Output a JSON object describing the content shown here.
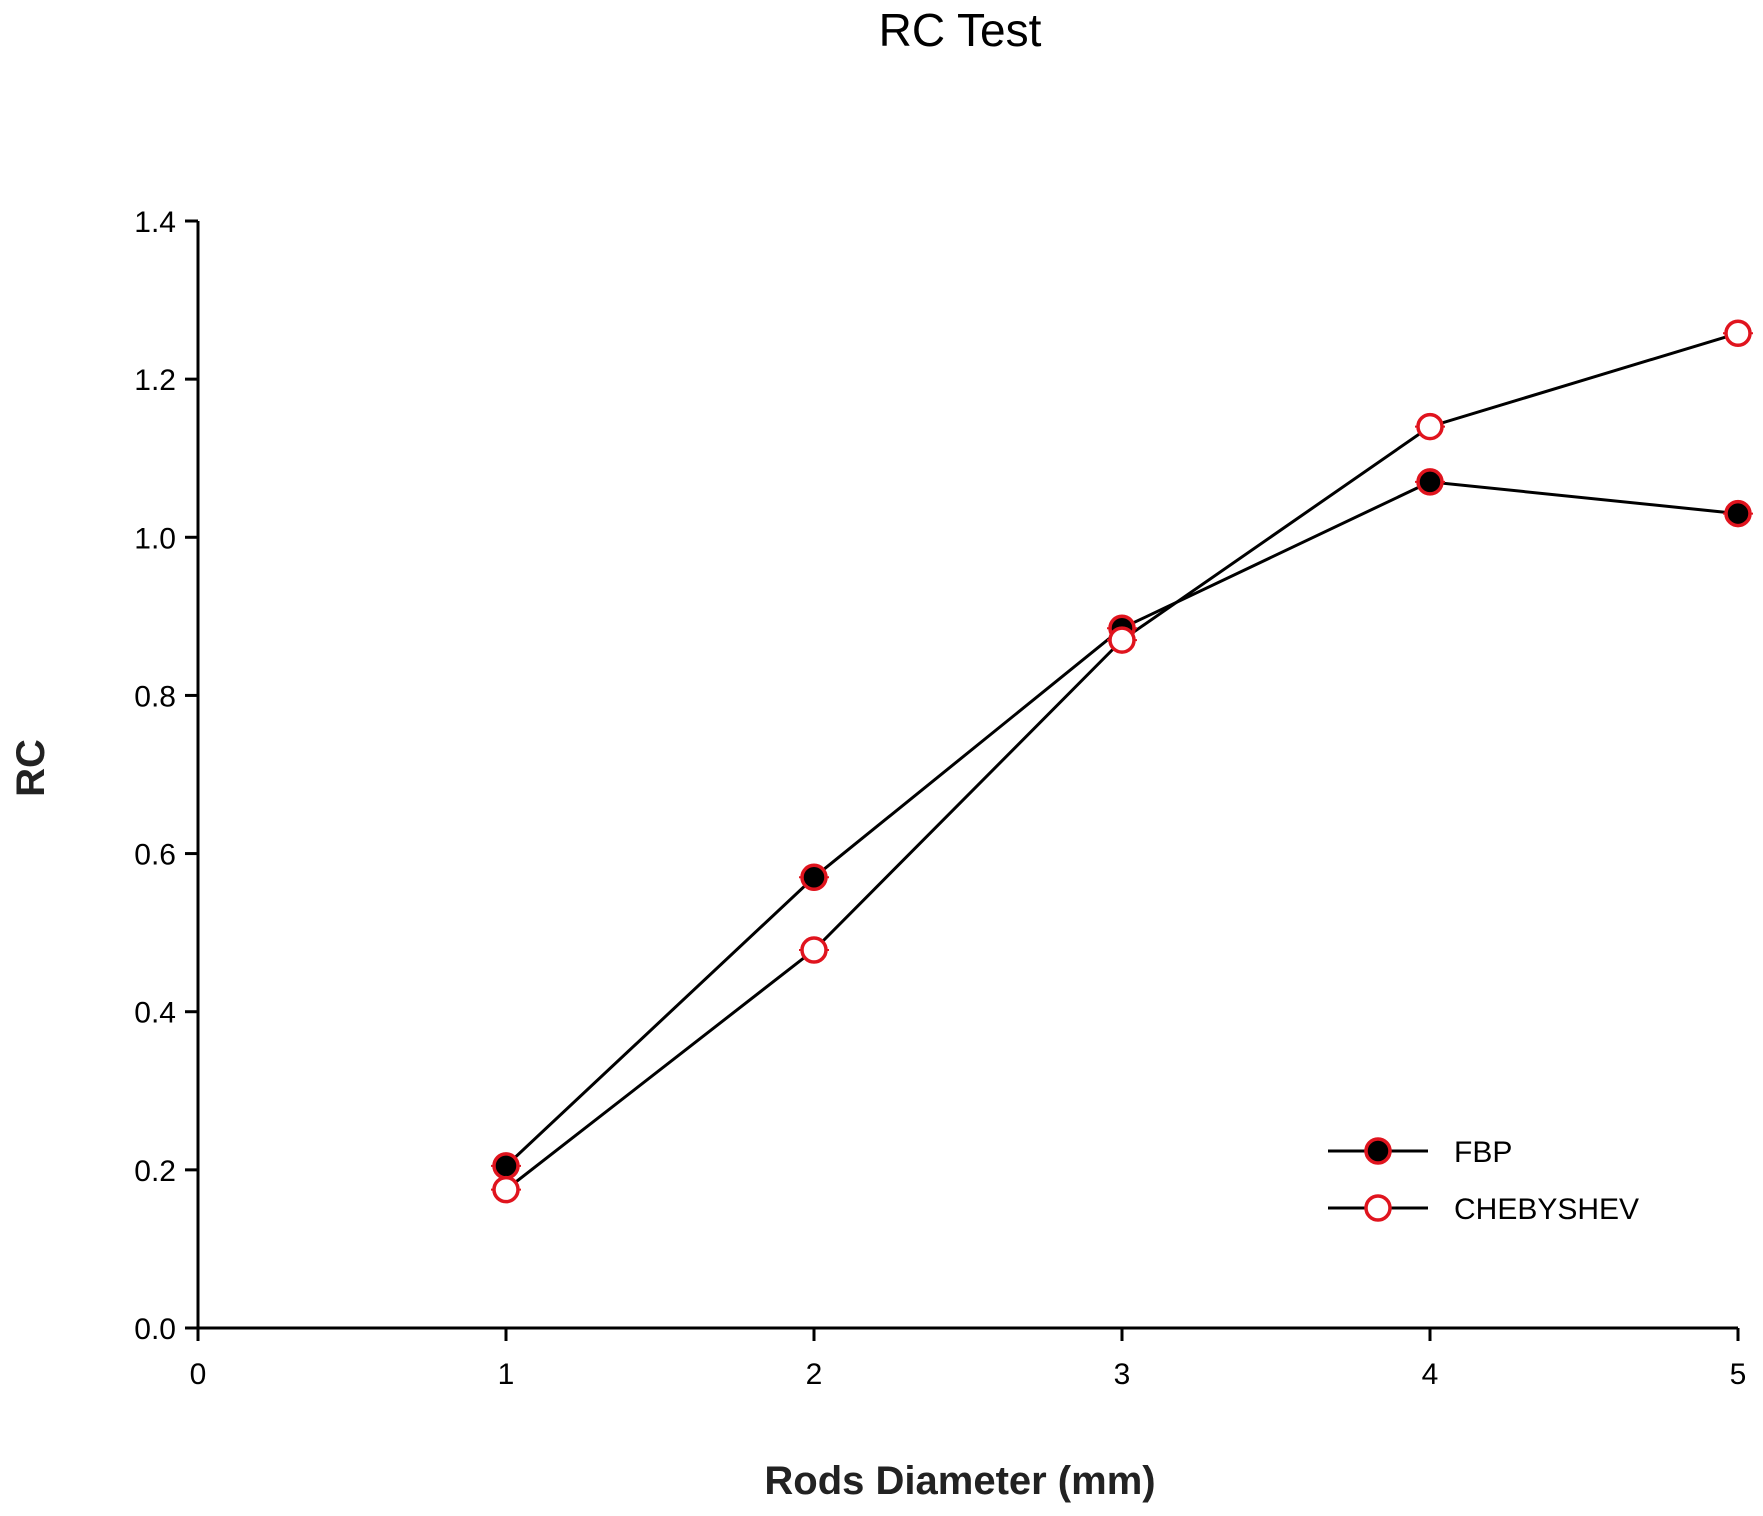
{
  "chart_data": {
    "type": "line",
    "title": "RC Test",
    "xlabel": "Rods Diameter (mm)",
    "ylabel": "RC",
    "xlim": [
      0,
      5
    ],
    "ylim": [
      0.0,
      1.4
    ],
    "xticks": [
      0,
      1,
      2,
      3,
      4,
      5
    ],
    "xtick_labels": [
      "0",
      "1",
      "2",
      "3",
      "4",
      "5"
    ],
    "yticks": [
      0.0,
      0.2,
      0.4,
      0.6,
      0.8,
      1.0,
      1.2,
      1.4
    ],
    "ytick_labels": [
      "0.0",
      "0.2",
      "0.4",
      "0.6",
      "0.8",
      "1.0",
      "1.2",
      "1.4"
    ],
    "grid": false,
    "legend_position": "bottom-right",
    "x": [
      1,
      2,
      3,
      4,
      5
    ],
    "series": [
      {
        "name": "FBP",
        "values": [
          0.205,
          0.57,
          0.885,
          1.07,
          1.03
        ],
        "marker": "filled-circle",
        "marker_fill": "#000000",
        "marker_edge": "#e0141e",
        "line_color": "#000000"
      },
      {
        "name": "CHEBYSHEV",
        "values": [
          0.175,
          0.478,
          0.87,
          1.14,
          1.258
        ],
        "marker": "open-circle",
        "marker_fill": "#ffffff",
        "marker_edge": "#e0141e",
        "line_color": "#000000"
      }
    ]
  }
}
